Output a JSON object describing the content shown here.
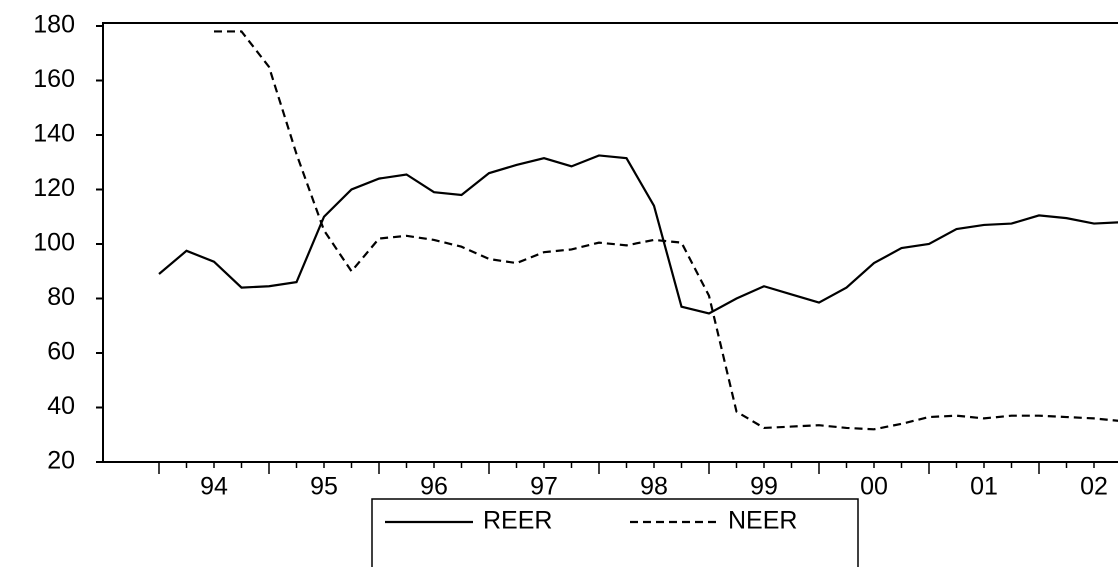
{
  "chart_data": {
    "type": "line",
    "categories": [
      null,
      null,
      "94",
      null,
      null,
      null,
      "95",
      null,
      null,
      null,
      "96",
      null,
      null,
      null,
      "97",
      null,
      null,
      null,
      "98",
      null,
      null,
      null,
      "99",
      null,
      null,
      null,
      "00",
      null,
      null,
      null,
      "01",
      null,
      null,
      null,
      "02",
      null
    ],
    "series": [
      {
        "name": "REER",
        "color": "#000000",
        "dash": "solid",
        "values": [
          89,
          97.5,
          93.5,
          84,
          84.5,
          86,
          110,
          120,
          124,
          125.5,
          119,
          118,
          126,
          129,
          131.5,
          128.5,
          132.5,
          131.5,
          114,
          77,
          74.5,
          80,
          84.5,
          81.5,
          78.5,
          84,
          93,
          98.5,
          100,
          105.5,
          107,
          107.5,
          110.5,
          109.5,
          107.5,
          108
        ]
      },
      {
        "name": "NEER",
        "color": "#000000",
        "dash": "dashed",
        "values": [
          null,
          null,
          178,
          178,
          165,
          133,
          105,
          90,
          102,
          103,
          101.5,
          99,
          94.5,
          93,
          97,
          98,
          100.5,
          99.5,
          101.5,
          100.5,
          81,
          38.5,
          32.5,
          33,
          33.5,
          32.5,
          32,
          34,
          36.5,
          37,
          36,
          37,
          37,
          36.5,
          36,
          35
        ]
      }
    ],
    "ylim": [
      20,
      180
    ],
    "yticks": [
      20,
      40,
      60,
      80,
      100,
      120,
      140,
      160,
      180
    ],
    "grid": false,
    "legend": "bottom"
  }
}
